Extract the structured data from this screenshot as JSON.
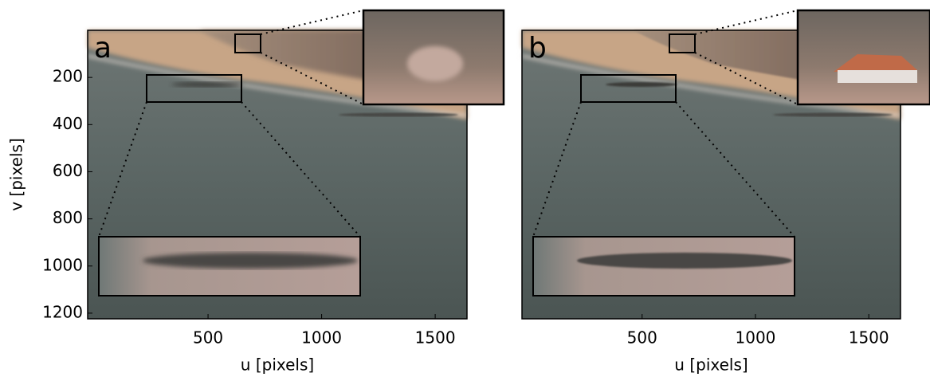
{
  "chart_data": [
    {
      "type": "image",
      "panel_label": "a",
      "x_label": "u [pixels]",
      "y_label": "v [pixels]",
      "xlim": [
        -30,
        1640
      ],
      "xticks": [
        500,
        1000,
        1500
      ],
      "ylim": [
        0,
        1224
      ],
      "yticks": [
        200,
        400,
        600,
        800,
        1000,
        1200
      ]
    },
    {
      "type": "image",
      "panel_label": "b",
      "x_label": "u [pixels]",
      "xlim": [
        -30,
        1640
      ],
      "xticks": [
        500,
        1000,
        1500
      ],
      "ylim": [
        0,
        1224
      ]
    }
  ]
}
